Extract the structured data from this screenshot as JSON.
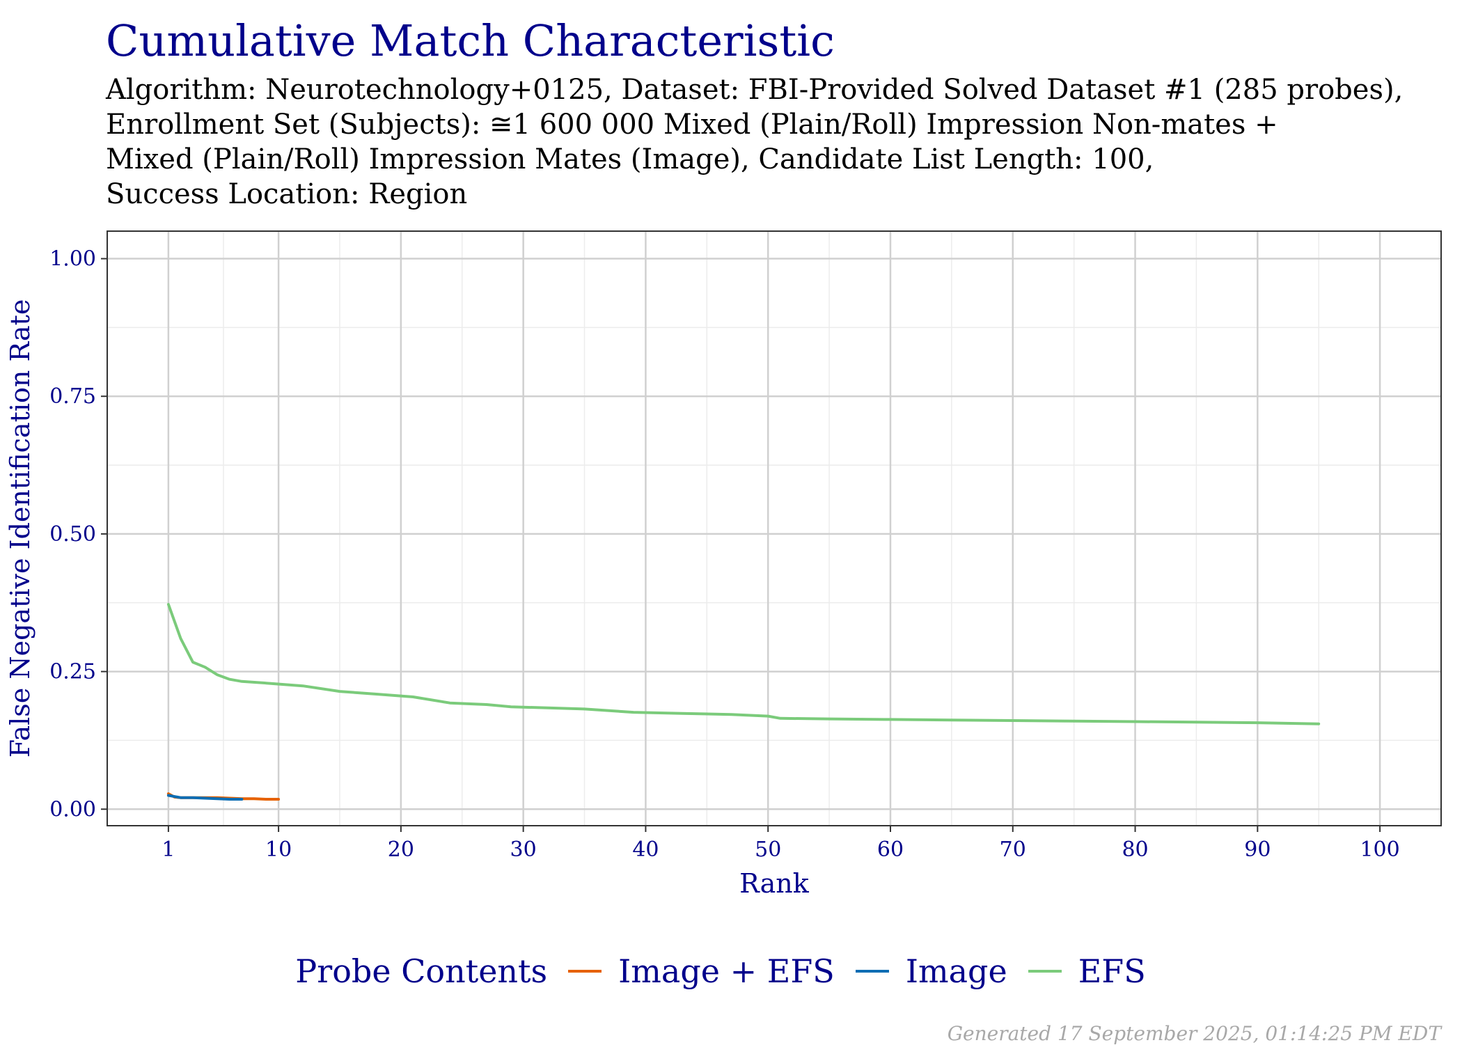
{
  "chart_data": {
    "type": "line",
    "title": "Cumulative Match Characteristic",
    "subtitle": [
      "Algorithm: Neurotechnology+0125, Dataset: FBI-Provided Solved Dataset #1 (285 probes),",
      "Enrollment Set (Subjects): ≅1 600 000 Mixed (Plain/Roll) Impression Non-mates +",
      "Mixed (Plain/Roll) Impression Mates (Image), Candidate List Length: 100,",
      "Success Location: Region"
    ],
    "xlabel": "Rank",
    "ylabel": "False Negative Identification Rate",
    "xlim": [
      -4,
      105
    ],
    "ylim": [
      -0.03,
      1.05
    ],
    "x_ticks": [
      1,
      10,
      20,
      30,
      40,
      50,
      60,
      70,
      80,
      90,
      100
    ],
    "x_minor_ticks": [
      5.5,
      15,
      25,
      35,
      45,
      55,
      65,
      75,
      85,
      95
    ],
    "y_ticks": [
      0.0,
      0.25,
      0.5,
      0.75,
      1.0
    ],
    "y_tick_labels": [
      "0.00",
      "0.25",
      "0.50",
      "0.75",
      "1.00"
    ],
    "y_minor_ticks": [
      0.125,
      0.375,
      0.625,
      0.875
    ],
    "grid": true,
    "legend": {
      "title": "Probe Contents",
      "position": "bottom"
    },
    "series": [
      {
        "name": "Image + EFS",
        "color": "#E66100",
        "x": [
          1,
          1.5,
          2,
          3,
          4,
          5,
          6,
          7,
          8,
          9,
          10
        ],
        "y": [
          0.028,
          0.022,
          0.021,
          0.021,
          0.021,
          0.021,
          0.02,
          0.019,
          0.019,
          0.018,
          0.018
        ]
      },
      {
        "name": "Image",
        "color": "#0C6DB3",
        "x": [
          1,
          2,
          3,
          4,
          5,
          6,
          7
        ],
        "y": [
          0.025,
          0.021,
          0.021,
          0.02,
          0.019,
          0.018,
          0.018
        ]
      },
      {
        "name": "EFS",
        "color": "#7BCB7B",
        "x": [
          1,
          2,
          3,
          4,
          5,
          6,
          7,
          9,
          12,
          15,
          18,
          21,
          24,
          27,
          29,
          32,
          35,
          39,
          43,
          47,
          50,
          51,
          55,
          60,
          65,
          70,
          75,
          80,
          85,
          90,
          95
        ],
        "y": [
          0.372,
          0.31,
          0.267,
          0.258,
          0.244,
          0.236,
          0.232,
          0.229,
          0.224,
          0.214,
          0.209,
          0.204,
          0.193,
          0.19,
          0.186,
          0.184,
          0.182,
          0.176,
          0.174,
          0.172,
          0.169,
          0.165,
          0.164,
          0.163,
          0.162,
          0.161,
          0.16,
          0.159,
          0.158,
          0.157,
          0.155
        ]
      }
    ]
  },
  "footer": "Generated 17 September 2025, 01:14:25 PM EDT"
}
